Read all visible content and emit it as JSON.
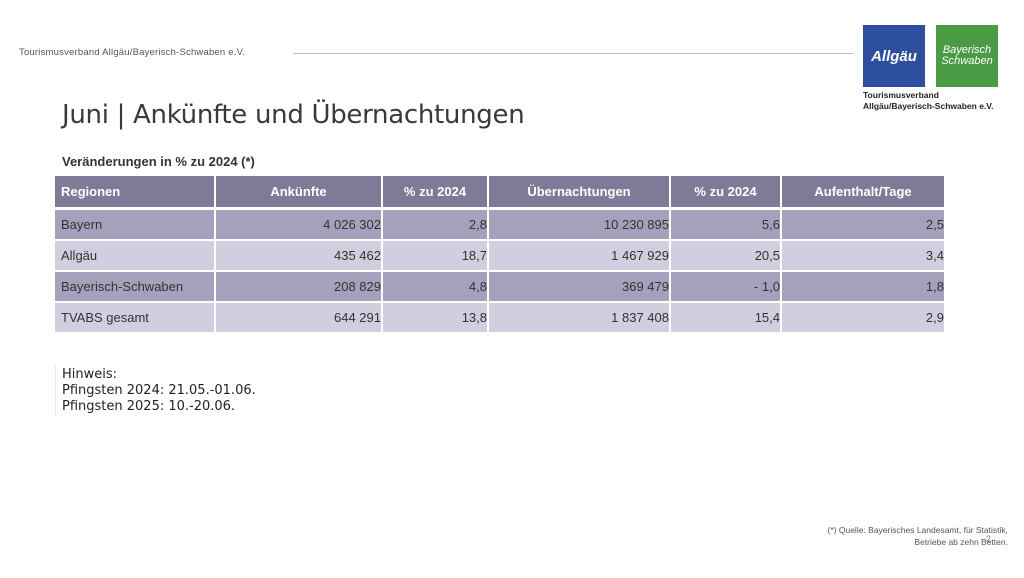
{
  "header": {
    "org": "Tourismusverband Allgäu/Bayerisch-Schwaben e.V.",
    "logo_allgaeu": "Allgäu",
    "logo_bs_line1": "Bayerisch",
    "logo_bs_line2": "Schwaben",
    "logo_caption_line1": "Tourismusverband",
    "logo_caption_line2": "Allgäu/Bayerisch-Schwaben e.V."
  },
  "title": "Juni | Ankünfte und Übernachtungen",
  "subtitle": "Veränderungen in % zu 2024 (*)",
  "table": {
    "headers": [
      "Regionen",
      "Ankünfte",
      "% zu 2024",
      "Übernachtungen",
      "% zu 2024",
      "Aufenthalt/Tage"
    ],
    "rows": [
      [
        "Bayern",
        "4 026 302",
        "2,8",
        "10 230 895",
        "5,6",
        "2,5"
      ],
      [
        "Allgäu",
        "435 462",
        "18,7",
        "1 467 929",
        "20,5",
        "3,4"
      ],
      [
        "Bayerisch-Schwaben",
        "208 829",
        "4,8",
        "369 479",
        "- 1,0",
        "1,8"
      ],
      [
        "TVABS gesamt",
        "644 291",
        "13,8",
        "1 837 408",
        "15,4",
        "2,9"
      ]
    ]
  },
  "note": {
    "heading": "Hinweis:",
    "line1": "Pfingsten 2024: 21.05.-01.06.",
    "line2": "Pfingsten 2025: 10.-20.06."
  },
  "source": {
    "line1": "(*)  Quelle: Bayerisches Landesamt, für Statistik,",
    "line2": "Betriebe ab zehn Betten."
  },
  "page_number": "2",
  "colors": {
    "header_bg": "#7e7a97",
    "row_dark": "#a4a1bc",
    "row_light": "#d0cfdf",
    "allgaeu_blue": "#2d4f9e",
    "bs_green": "#4b9b44"
  }
}
